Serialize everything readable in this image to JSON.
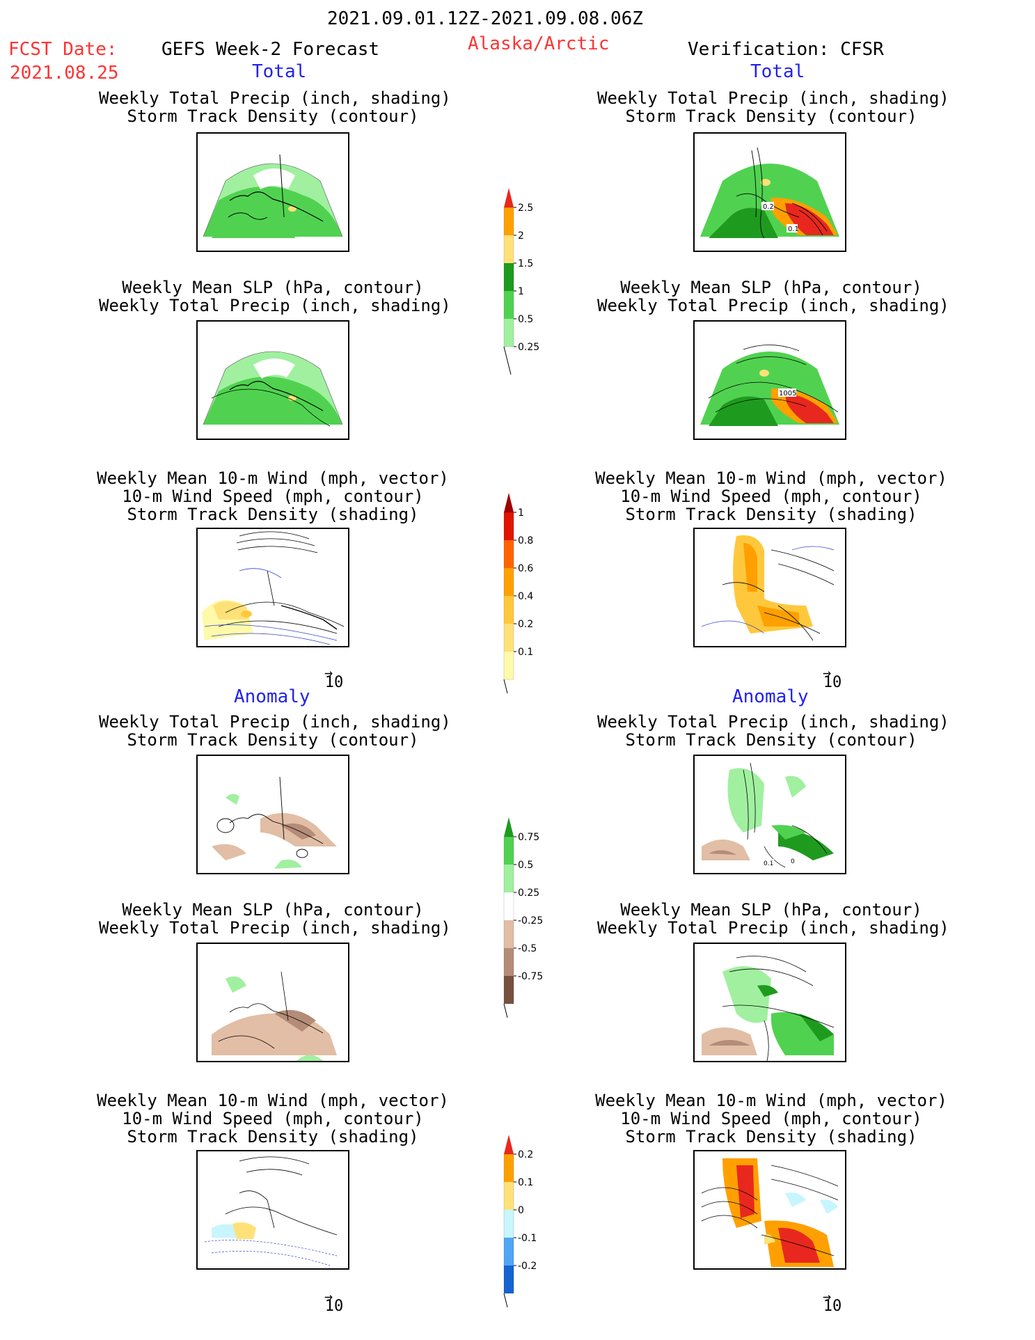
{
  "header": {
    "period": "2021.09.01.12Z-2021.09.08.06Z",
    "fcst_label": "FCST Date:",
    "fcst_date": "2021.08.25",
    "model": "GEFS Week-2 Forecast",
    "region": "Alaska/Arctic",
    "verification": "Verification: CFSR"
  },
  "sections": {
    "total": "Total",
    "anomaly": "Anomaly"
  },
  "panel_titles": {
    "precip_storm": [
      "Weekly Total Precip (inch, shading)",
      "Storm Track Density (contour)"
    ],
    "slp_precip": [
      "Weekly Mean SLP (hPa, contour)",
      "Weekly Total Precip (inch, shading)"
    ],
    "wind_storm": [
      "Weekly Mean 10-m Wind (mph, vector)",
      "10-m Wind Speed (mph, contour)",
      "Storm Track Density (shading)"
    ]
  },
  "vector_ref": "10",
  "map_labels": {
    "r_precip_a": "0.2",
    "r_precip_b": "0.1",
    "r_slp": "1005",
    "r_anom": "0.1",
    "r_anom_b": "0"
  },
  "colorbars": {
    "precip_total": {
      "labels": [
        "2.5",
        "2",
        "1.5",
        "1",
        "0.5",
        "0.25"
      ],
      "colors": [
        "#e8281e",
        "#ffa000",
        "#ffe178",
        "#1e9b1e",
        "#50d250",
        "#a0f0a0"
      ]
    },
    "storm_total": {
      "labels": [
        "1",
        "0.8",
        "0.6",
        "0.4",
        "0.2",
        "0.1"
      ],
      "colors": [
        "#a00000",
        "#e11400",
        "#ff6400",
        "#ffa000",
        "#ffc83c",
        "#ffe178",
        "#fffaaa"
      ]
    },
    "precip_anom": {
      "labels": [
        "0.75",
        "0.5",
        "0.25",
        "-0.25",
        "-0.5",
        "-0.75"
      ],
      "colors": [
        "#1e9b1e",
        "#50d250",
        "#a0f0a0",
        "#ffffff",
        "#e1bea5",
        "#b48c78",
        "#785040"
      ]
    },
    "storm_anom": {
      "labels": [
        "0.2",
        "0.1",
        "0",
        "-0.1",
        "-0.2"
      ],
      "colors": [
        "#e8281e",
        "#ffa000",
        "#ffe178",
        "#c8f5ff",
        "#50a5f5",
        "#1464d2"
      ]
    }
  }
}
